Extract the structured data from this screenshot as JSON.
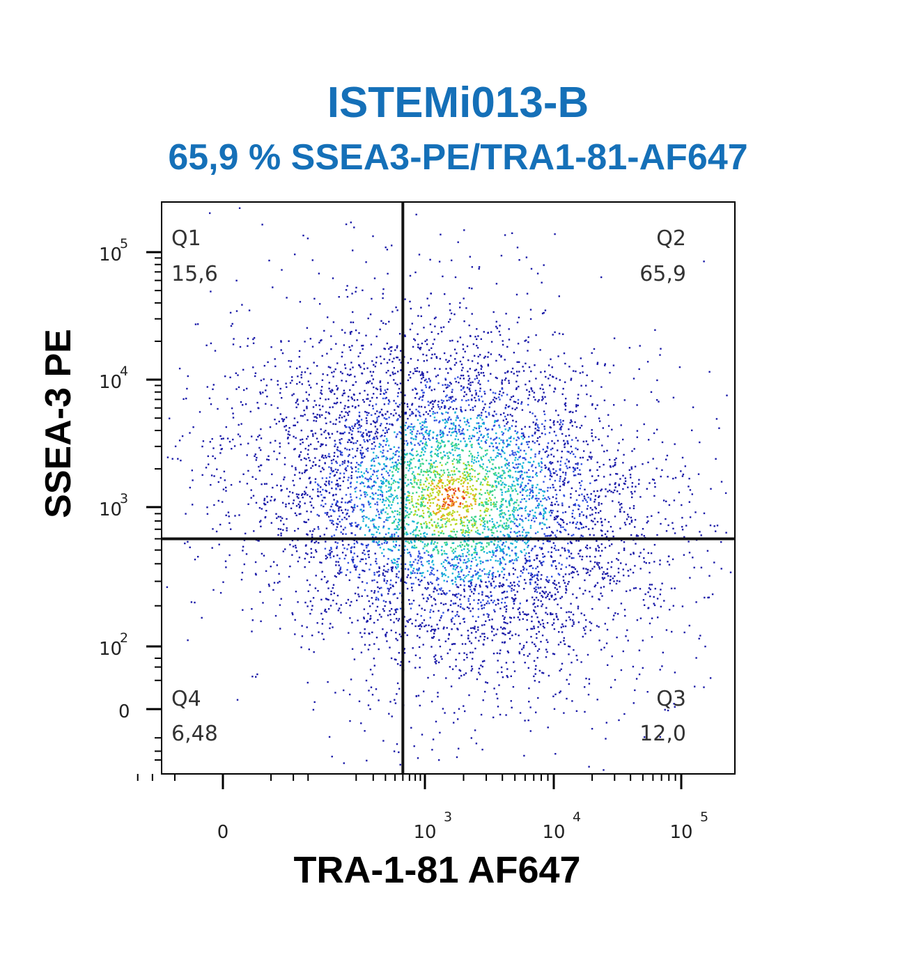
{
  "chart_data": {
    "type": "scatter",
    "title": "ISTEMi013-B",
    "subtitle": "65,9 % SSEA3-PE/TRA1-81-AF647",
    "xlabel": "TRA-1-81 AF647",
    "ylabel": "SSEA-3 PE",
    "x_scale": "biexponential",
    "y_scale": "biexponential",
    "x_ticks": [
      {
        "value": 0,
        "base": "0",
        "exp": ""
      },
      {
        "value": 1000,
        "base": "10",
        "exp": "3"
      },
      {
        "value": 10000,
        "base": "10",
        "exp": "4"
      },
      {
        "value": 100000,
        "base": "10",
        "exp": "5"
      }
    ],
    "y_ticks": [
      {
        "value": 0,
        "base": "0",
        "exp": ""
      },
      {
        "value": 100,
        "base": "10",
        "exp": "2"
      },
      {
        "value": 1000,
        "base": "10",
        "exp": "3"
      },
      {
        "value": 10000,
        "base": "10",
        "exp": "4"
      },
      {
        "value": 100000,
        "base": "10",
        "exp": "5"
      }
    ],
    "gate": {
      "x": 600,
      "y": 600
    },
    "quadrants": [
      {
        "id": "Q1",
        "value": "15,6",
        "position": "top-left"
      },
      {
        "id": "Q2",
        "value": "65,9",
        "position": "top-right"
      },
      {
        "id": "Q3",
        "value": "12,0",
        "position": "bottom-right"
      },
      {
        "id": "Q4",
        "value": "6,48",
        "position": "bottom-left"
      }
    ],
    "density_colors": [
      "#1a1aa8",
      "#2f4fe0",
      "#18b4d8",
      "#3ad48a",
      "#b8d820",
      "#f0a020",
      "#e03c1c"
    ],
    "population": {
      "center_x": 1600,
      "center_y": 1200,
      "shape": "dense cluster spanning gate"
    }
  },
  "colors": {
    "title": "#1570b8",
    "axis": "#000000",
    "gate_line": "#111111"
  }
}
